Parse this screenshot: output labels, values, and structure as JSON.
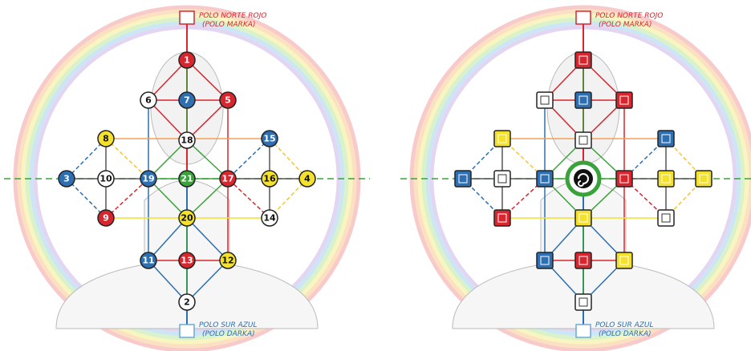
{
  "panels": [
    {
      "north_label": "POLO NORTE ROJO",
      "north_sub": "(POLO MARKA)",
      "south_label": "POLO SUR AZUL",
      "south_sub": "(POLO DARKA)",
      "nodes": [
        {
          "label": "1",
          "color": "#d8262e"
        },
        {
          "label": "7",
          "color": "#2d6fb0"
        },
        {
          "label": "6",
          "color": "#ffffff"
        },
        {
          "label": "5",
          "color": "#d8262e"
        },
        {
          "label": "18",
          "color": "#ffffff"
        },
        {
          "label": "8",
          "color": "#f3e12c"
        },
        {
          "label": "15",
          "color": "#2d6fb0"
        },
        {
          "label": "3",
          "color": "#2d6fb0"
        },
        {
          "label": "10",
          "color": "#ffffff"
        },
        {
          "label": "19",
          "color": "#2d6fb0"
        },
        {
          "label": "21",
          "color": "#3aa23a"
        },
        {
          "label": "17",
          "color": "#d8262e"
        },
        {
          "label": "16",
          "color": "#f3e12c"
        },
        {
          "label": "4",
          "color": "#f3e12c"
        },
        {
          "label": "9",
          "color": "#d8262e"
        },
        {
          "label": "20",
          "color": "#f3e12c"
        },
        {
          "label": "14",
          "color": "#ffffff"
        },
        {
          "label": "11",
          "color": "#2d6fb0"
        },
        {
          "label": "13",
          "color": "#d8262e"
        },
        {
          "label": "12",
          "color": "#f3e12c"
        },
        {
          "label": "2",
          "color": "#ffffff"
        }
      ]
    },
    {
      "north_label": "POLO NORTE ROJO",
      "north_sub": "(POLO MARKA)",
      "south_label": "POLO SUR AZUL",
      "south_sub": "(POLO DARKA)"
    }
  ]
}
